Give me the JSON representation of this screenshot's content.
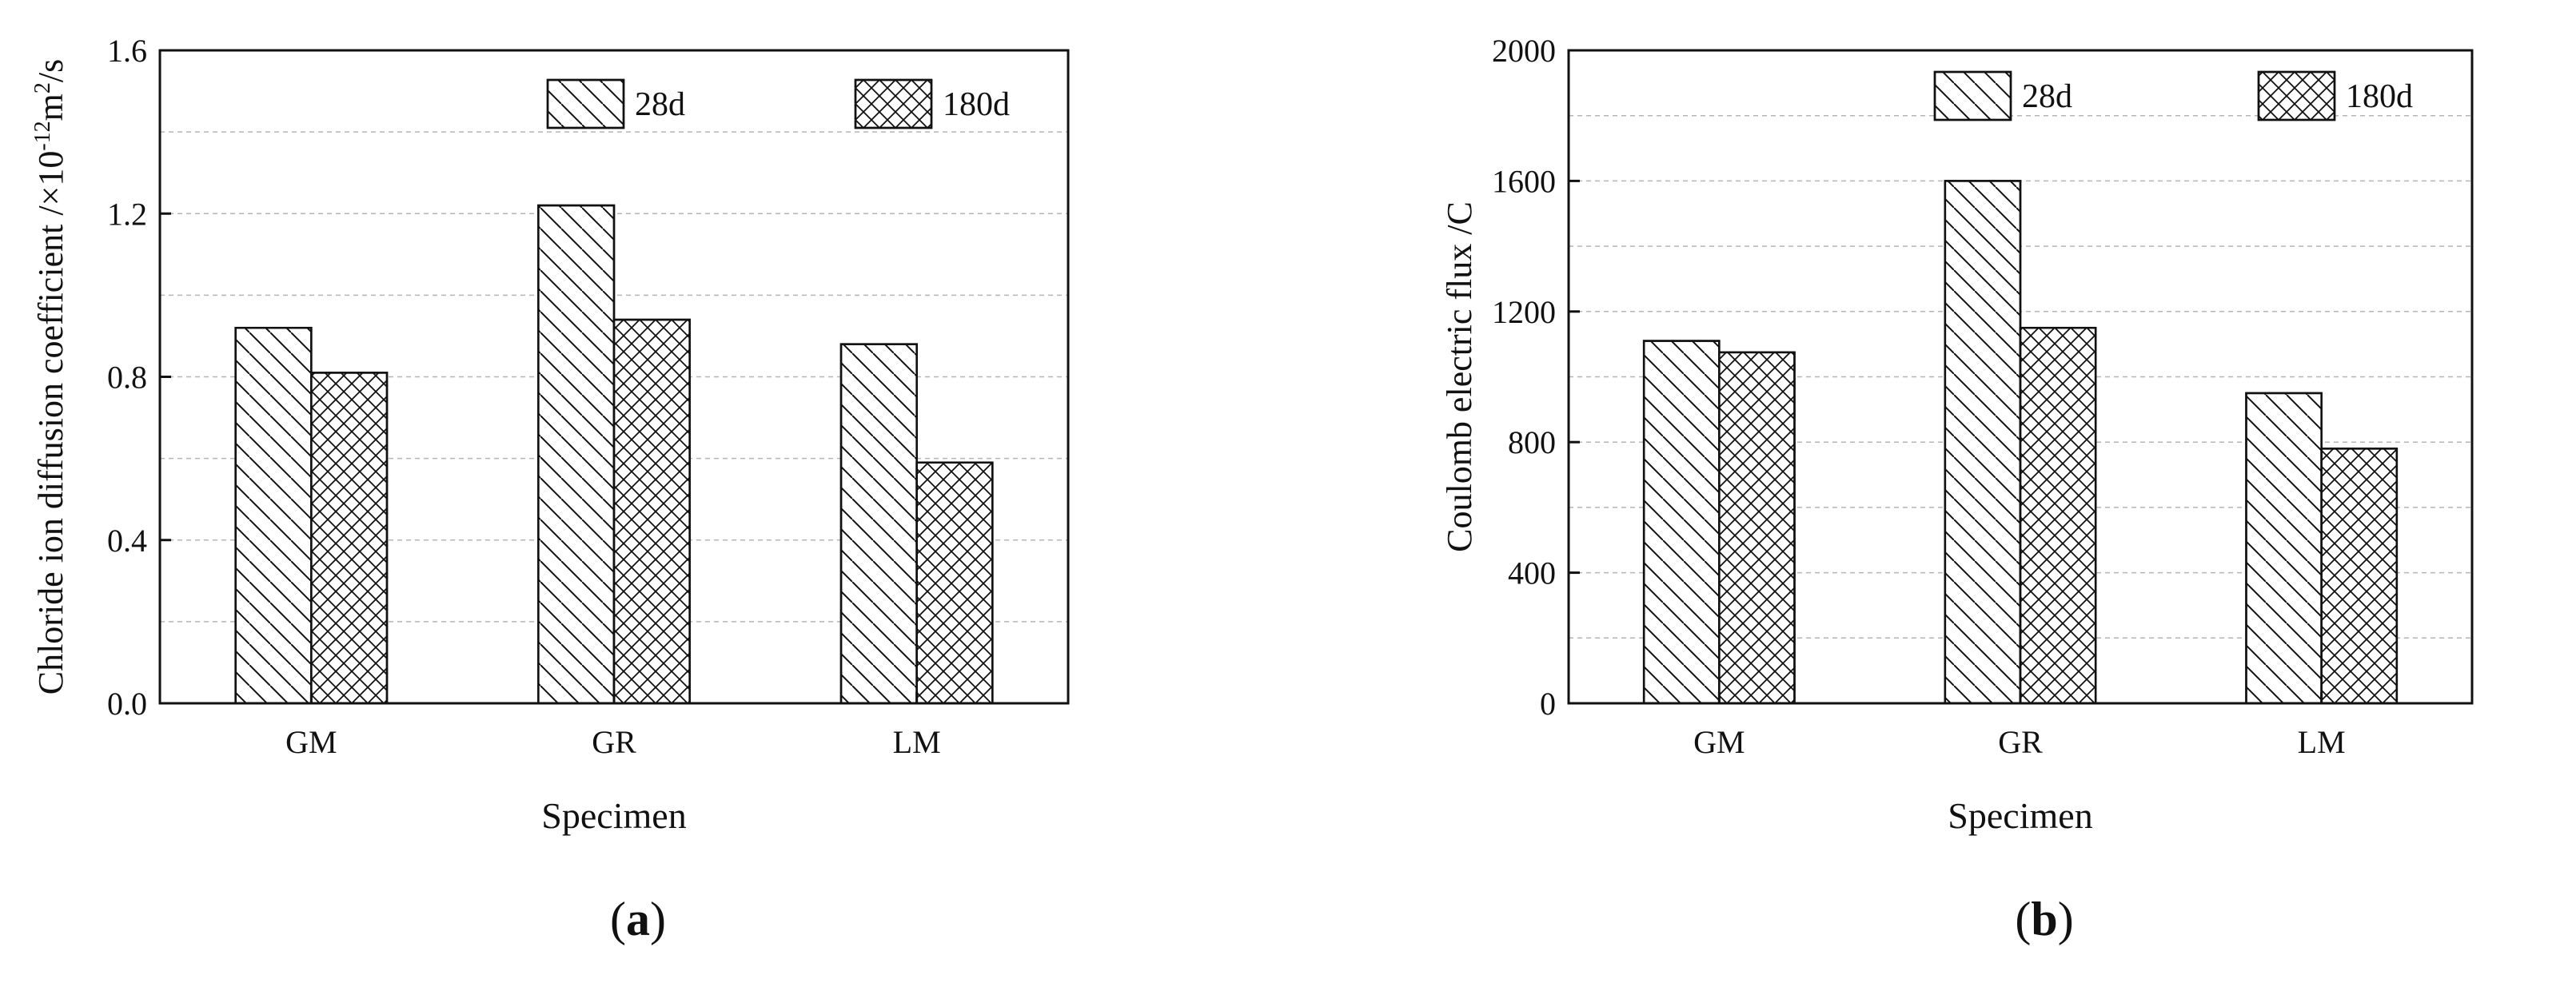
{
  "chart_data": [
    {
      "type": "bar",
      "panel_label": "a",
      "categories": [
        "GM",
        "GR",
        "LM"
      ],
      "series": [
        {
          "name": "28d",
          "values": [
            0.92,
            1.22,
            0.88
          ]
        },
        {
          "name": "180d",
          "values": [
            0.81,
            0.94,
            0.59
          ]
        }
      ],
      "xlabel": "Specimen",
      "ylabel": "Chloride ion diffusion coefficient /×10",
      "ylabel_sup1": "-12",
      "ylabel_mid": "m",
      "ylabel_sup2": "2",
      "ylabel_end": "/s",
      "ylim": [
        0,
        1.6
      ],
      "yticks": [
        "0.0",
        "0.4",
        "0.8",
        "1.2",
        "1.6"
      ],
      "grid": true,
      "legend_position": "top"
    },
    {
      "type": "bar",
      "panel_label": "b",
      "categories": [
        "GM",
        "GR",
        "LM"
      ],
      "series": [
        {
          "name": "28d",
          "values": [
            1110,
            1600,
            950
          ]
        },
        {
          "name": "180d",
          "values": [
            1075,
            1150,
            780
          ]
        }
      ],
      "xlabel": "Specimen",
      "ylabel": "Coulomb electric flux /C",
      "ylim": [
        0,
        2000
      ],
      "yticks": [
        "0",
        "400",
        "800",
        "1200",
        "1600",
        "2000"
      ],
      "grid": true,
      "legend_position": "top"
    }
  ],
  "colors": {
    "axis": "#111111",
    "bar_stroke": "#111111",
    "grid": "#aaaaaa",
    "bar_fill": "#ffffff"
  }
}
